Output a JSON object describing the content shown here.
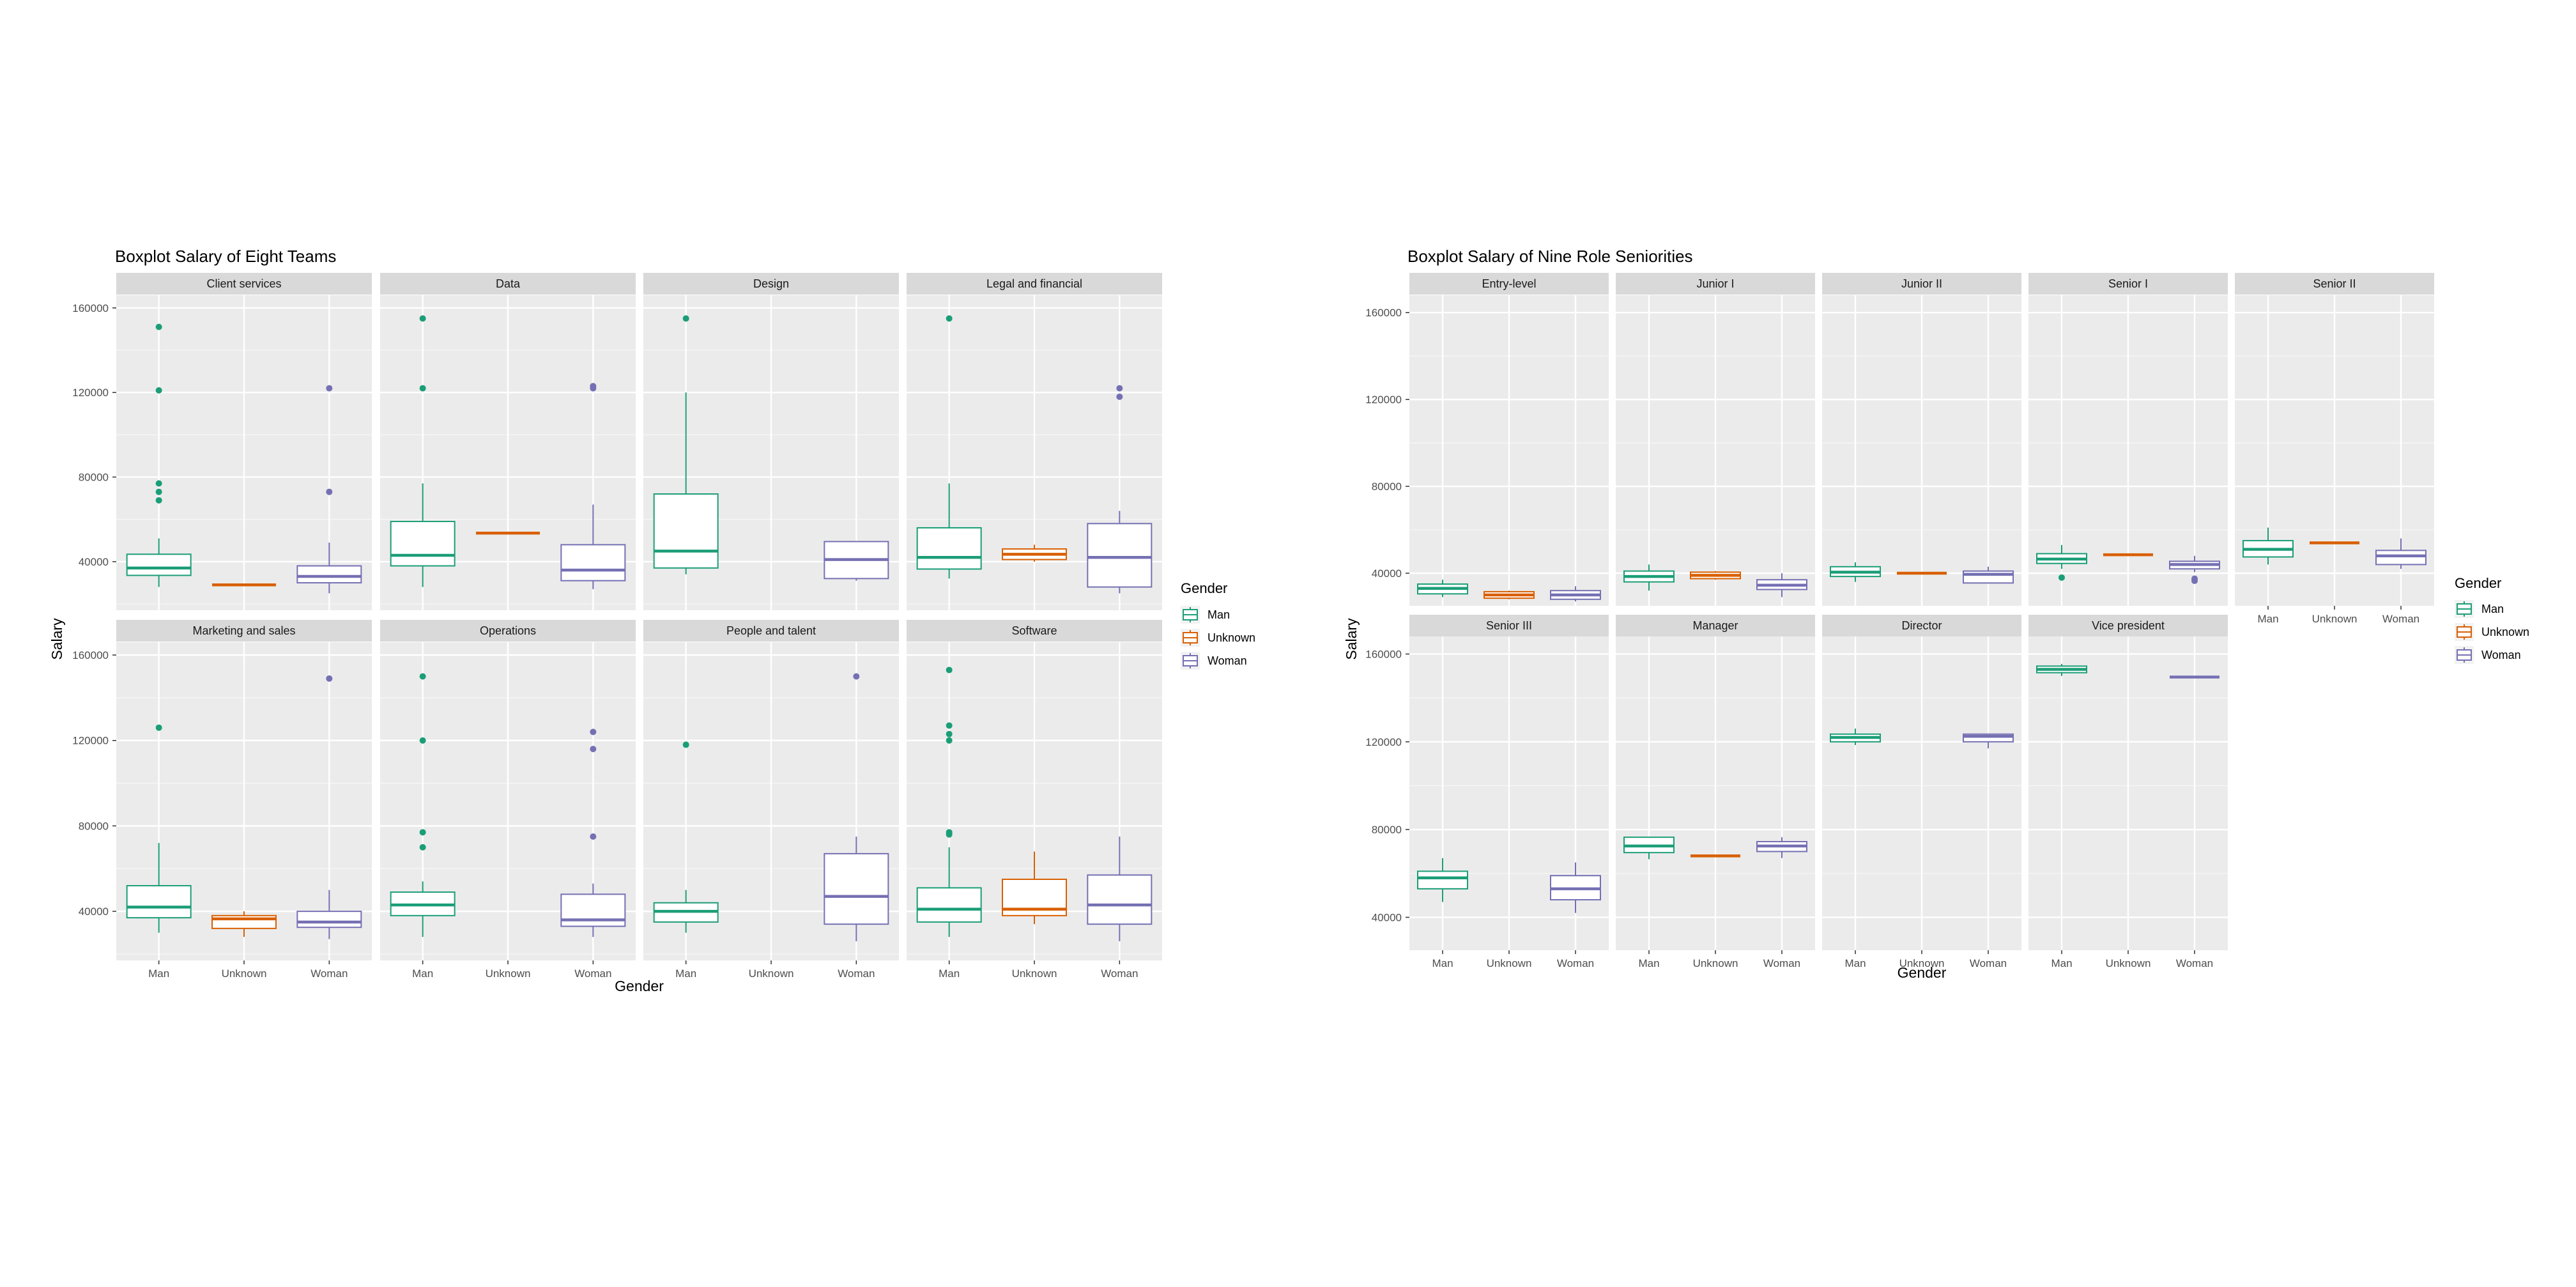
{
  "colors": {
    "Man": "#1b9e77",
    "Unknown": "#d95f02",
    "Woman": "#7570b3",
    "panel": "#ebebeb",
    "strip": "#d9d9d9",
    "grid": "#ffffff"
  },
  "chart_data": [
    {
      "type": "boxplot",
      "title": "Boxplot Salary of Eight Teams",
      "xlabel": "Gender",
      "ylabel": "Salary",
      "x": [
        "Man",
        "Unknown",
        "Woman"
      ],
      "ylim": [
        17000,
        166000
      ],
      "yticks": [
        40000,
        80000,
        120000,
        160000
      ],
      "facet_rows": 2,
      "facet_cols": 4,
      "legend": {
        "title": "Gender",
        "entries": [
          "Man",
          "Unknown",
          "Woman"
        ],
        "placement": "right"
      },
      "grid": true,
      "panels": [
        {
          "name": "Client services",
          "boxes": [
            {
              "group": "Man",
              "q1": 33500,
              "median": 37000,
              "q3": 43500,
              "lo": 28000,
              "hi": 51000,
              "outliers": [
                69000,
                73000,
                77000,
                121000,
                151000
              ]
            },
            {
              "group": "Unknown",
              "q1": 29000,
              "median": 29000,
              "q3": 29000,
              "lo": 29000,
              "hi": 29000,
              "outliers": []
            },
            {
              "group": "Woman",
              "q1": 30000,
              "median": 33000,
              "q3": 38000,
              "lo": 25000,
              "hi": 49000,
              "outliers": [
                73000,
                122000
              ]
            }
          ]
        },
        {
          "name": "Data",
          "boxes": [
            {
              "group": "Man",
              "q1": 38000,
              "median": 43000,
              "q3": 59000,
              "lo": 28000,
              "hi": 77000,
              "outliers": [
                122000,
                155000
              ]
            },
            {
              "group": "Unknown",
              "q1": 53500,
              "median": 53500,
              "q3": 53500,
              "lo": 53500,
              "hi": 53500,
              "outliers": []
            },
            {
              "group": "Woman",
              "q1": 31000,
              "median": 36000,
              "q3": 48000,
              "lo": 27000,
              "hi": 67000,
              "outliers": [
                122000,
                123000
              ]
            }
          ]
        },
        {
          "name": "Design",
          "boxes": [
            {
              "group": "Man",
              "q1": 37000,
              "median": 45000,
              "q3": 72000,
              "lo": 34000,
              "hi": 120000,
              "outliers": [
                155000
              ]
            },
            {
              "group": "Woman",
              "q1": 32000,
              "median": 41000,
              "q3": 49500,
              "lo": 31000,
              "hi": 49500,
              "outliers": []
            }
          ]
        },
        {
          "name": "Legal and financial",
          "boxes": [
            {
              "group": "Man",
              "q1": 36500,
              "median": 42000,
              "q3": 56000,
              "lo": 32000,
              "hi": 77000,
              "outliers": [
                155000
              ]
            },
            {
              "group": "Unknown",
              "q1": 41000,
              "median": 43500,
              "q3": 46000,
              "lo": 40000,
              "hi": 48000,
              "outliers": []
            },
            {
              "group": "Woman",
              "q1": 28000,
              "median": 42000,
              "q3": 58000,
              "lo": 25000,
              "hi": 64000,
              "outliers": [
                118000,
                122000
              ]
            }
          ]
        },
        {
          "name": "Marketing and sales",
          "boxes": [
            {
              "group": "Man",
              "q1": 37000,
              "median": 42000,
              "q3": 52000,
              "lo": 30000,
              "hi": 72000,
              "outliers": [
                126000
              ]
            },
            {
              "group": "Unknown",
              "q1": 32000,
              "median": 36500,
              "q3": 38000,
              "lo": 28000,
              "hi": 40000,
              "outliers": []
            },
            {
              "group": "Woman",
              "q1": 32500,
              "median": 35000,
              "q3": 40000,
              "lo": 27000,
              "hi": 50000,
              "outliers": [
                149000
              ]
            }
          ]
        },
        {
          "name": "Operations",
          "boxes": [
            {
              "group": "Man",
              "q1": 38000,
              "median": 43000,
              "q3": 49000,
              "lo": 28000,
              "hi": 54000,
              "outliers": [
                70000,
                77000,
                120000,
                150000
              ]
            },
            {
              "group": "Woman",
              "q1": 33000,
              "median": 36000,
              "q3": 48000,
              "lo": 28000,
              "hi": 53000,
              "outliers": [
                75000,
                116000,
                124000
              ]
            }
          ]
        },
        {
          "name": "People and talent",
          "boxes": [
            {
              "group": "Man",
              "q1": 35000,
              "median": 40000,
              "q3": 44000,
              "lo": 30000,
              "hi": 50000,
              "outliers": [
                118000
              ]
            },
            {
              "group": "Woman",
              "q1": 34000,
              "median": 47000,
              "q3": 67000,
              "lo": 26000,
              "hi": 75000,
              "outliers": [
                150000
              ]
            }
          ]
        },
        {
          "name": "Software",
          "boxes": [
            {
              "group": "Man",
              "q1": 35000,
              "median": 41000,
              "q3": 51000,
              "lo": 28000,
              "hi": 70000,
              "outliers": [
                76000,
                77000,
                120000,
                123000,
                127000,
                153000
              ]
            },
            {
              "group": "Unknown",
              "q1": 38000,
              "median": 41000,
              "q3": 55000,
              "lo": 34000,
              "hi": 68000,
              "outliers": []
            },
            {
              "group": "Woman",
              "q1": 34000,
              "median": 43000,
              "q3": 57000,
              "lo": 26000,
              "hi": 75000,
              "outliers": []
            }
          ]
        }
      ]
    },
    {
      "type": "boxplot",
      "title": "Boxplot Salary of Nine Role Seniorities",
      "xlabel": "Gender",
      "ylabel": "Salary",
      "x": [
        "Man",
        "Unknown",
        "Woman"
      ],
      "ylim": [
        25000,
        168000
      ],
      "yticks": [
        40000,
        80000,
        120000,
        160000
      ],
      "facet_rows": 2,
      "facet_cols": 5,
      "legend": {
        "title": "Gender",
        "entries": [
          "Man",
          "Unknown",
          "Woman"
        ],
        "placement": "right"
      },
      "grid": true,
      "panels": [
        {
          "name": "Entry-level",
          "boxes": [
            {
              "group": "Man",
              "q1": 30500,
              "median": 33000,
              "q3": 35000,
              "lo": 29000,
              "hi": 37000,
              "outliers": []
            },
            {
              "group": "Unknown",
              "q1": 28500,
              "median": 30000,
              "q3": 31500,
              "lo": 28000,
              "hi": 32000,
              "outliers": []
            },
            {
              "group": "Woman",
              "q1": 28000,
              "median": 30000,
              "q3": 32000,
              "lo": 27000,
              "hi": 34000,
              "outliers": []
            }
          ]
        },
        {
          "name": "Junior I",
          "boxes": [
            {
              "group": "Man",
              "q1": 36000,
              "median": 38500,
              "q3": 41000,
              "lo": 32000,
              "hi": 44000,
              "outliers": []
            },
            {
              "group": "Unknown",
              "q1": 37500,
              "median": 39000,
              "q3": 40500,
              "lo": 37000,
              "hi": 41000,
              "outliers": []
            },
            {
              "group": "Woman",
              "q1": 32500,
              "median": 34500,
              "q3": 37000,
              "lo": 29000,
              "hi": 40000,
              "outliers": []
            }
          ]
        },
        {
          "name": "Junior II",
          "boxes": [
            {
              "group": "Man",
              "q1": 38500,
              "median": 40500,
              "q3": 43000,
              "lo": 36000,
              "hi": 45000,
              "outliers": []
            },
            {
              "group": "Unknown",
              "q1": 40000,
              "median": 40000,
              "q3": 40000,
              "lo": 40000,
              "hi": 40000,
              "outliers": []
            },
            {
              "group": "Woman",
              "q1": 35500,
              "median": 39500,
              "q3": 41000,
              "lo": 35500,
              "hi": 43000,
              "outliers": []
            }
          ]
        },
        {
          "name": "Senior I",
          "boxes": [
            {
              "group": "Man",
              "q1": 44500,
              "median": 46500,
              "q3": 49000,
              "lo": 42000,
              "hi": 53000,
              "outliers": [
                38000
              ]
            },
            {
              "group": "Unknown",
              "q1": 48500,
              "median": 48500,
              "q3": 48500,
              "lo": 48500,
              "hi": 48500,
              "outliers": []
            },
            {
              "group": "Woman",
              "q1": 42000,
              "median": 44000,
              "q3": 45500,
              "lo": 40500,
              "hi": 48000,
              "outliers": [
                36500,
                37500
              ]
            }
          ]
        },
        {
          "name": "Senior II",
          "boxes": [
            {
              "group": "Man",
              "q1": 47500,
              "median": 51000,
              "q3": 55000,
              "lo": 44000,
              "hi": 61000,
              "outliers": []
            },
            {
              "group": "Unknown",
              "q1": 54000,
              "median": 54000,
              "q3": 54000,
              "lo": 54000,
              "hi": 54000,
              "outliers": []
            },
            {
              "group": "Woman",
              "q1": 44000,
              "median": 48000,
              "q3": 50500,
              "lo": 42000,
              "hi": 56000,
              "outliers": []
            }
          ]
        },
        {
          "name": "Senior III",
          "boxes": [
            {
              "group": "Man",
              "q1": 53000,
              "median": 58000,
              "q3": 61000,
              "lo": 47000,
              "hi": 67000,
              "outliers": []
            },
            {
              "group": "Woman",
              "q1": 48000,
              "median": 53000,
              "q3": 59000,
              "lo": 42000,
              "hi": 65000,
              "outliers": []
            }
          ]
        },
        {
          "name": "Manager",
          "boxes": [
            {
              "group": "Man",
              "q1": 69500,
              "median": 72500,
              "q3": 76500,
              "lo": 66500,
              "hi": 76500,
              "outliers": []
            },
            {
              "group": "Unknown",
              "q1": 68000,
              "median": 68000,
              "q3": 68000,
              "lo": 68000,
              "hi": 68000,
              "outliers": []
            },
            {
              "group": "Woman",
              "q1": 70000,
              "median": 72500,
              "q3": 74500,
              "lo": 67000,
              "hi": 76500,
              "outliers": []
            }
          ]
        },
        {
          "name": "Director",
          "boxes": [
            {
              "group": "Man",
              "q1": 120000,
              "median": 122000,
              "q3": 123500,
              "lo": 118500,
              "hi": 126000,
              "outliers": []
            },
            {
              "group": "Woman",
              "q1": 120000,
              "median": 122500,
              "q3": 123500,
              "lo": 117000,
              "hi": 123500,
              "outliers": []
            }
          ]
        },
        {
          "name": "Vice president",
          "boxes": [
            {
              "group": "Man",
              "q1": 151500,
              "median": 153000,
              "q3": 154500,
              "lo": 150000,
              "hi": 155500,
              "outliers": []
            },
            {
              "group": "Woman",
              "q1": 149500,
              "median": 149500,
              "q3": 149500,
              "lo": 149500,
              "hi": 149500,
              "outliers": []
            }
          ]
        }
      ]
    }
  ]
}
